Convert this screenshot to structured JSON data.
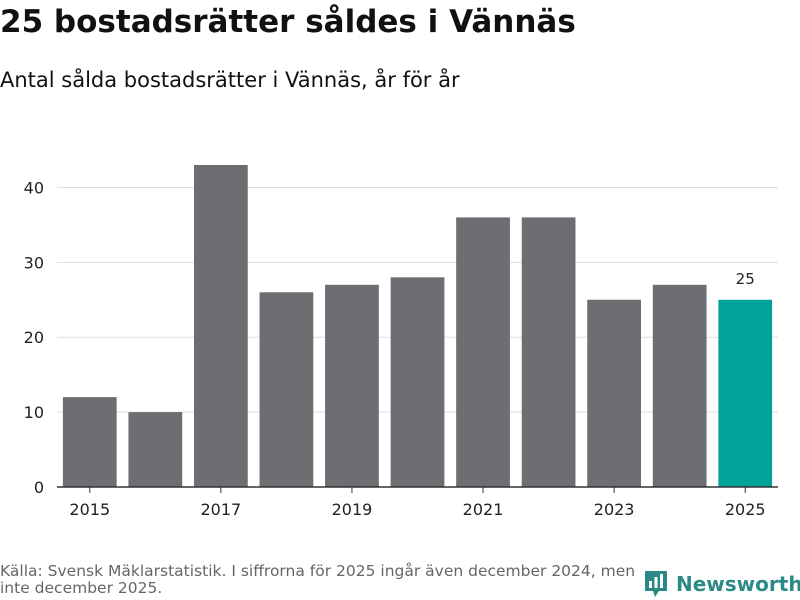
{
  "title": "25 bostadsrätter såldes i Vännäs",
  "subtitle": "Antal sålda bostadsrätter i Vännäs, år för år",
  "footer": {
    "source": "Källa: Svensk Mäklarstatistik. I siffrorna för 2025 ingår även december 2024, men inte december 2025."
  },
  "brand": {
    "name": "Newsworthy",
    "icon": "newsworthy-logo-icon"
  },
  "colors": {
    "bar": "#6e6d72",
    "highlight": "#00a29a",
    "grid": "#dddddd",
    "axis": "#333333"
  },
  "chart_data": {
    "type": "bar",
    "title": "25 bostadsrätter såldes i Vännäs",
    "subtitle": "Antal sålda bostadsrätter i Vännäs, år för år",
    "xlabel": "",
    "ylabel": "",
    "categories": [
      "2015",
      "2016",
      "2017",
      "2018",
      "2019",
      "2020",
      "2021",
      "2022",
      "2023",
      "2024",
      "2025"
    ],
    "values": [
      12,
      10,
      43,
      26,
      27,
      28,
      36,
      36,
      25,
      27,
      25
    ],
    "x_tick_labels": [
      "2015",
      "2017",
      "2019",
      "2021",
      "2023",
      "2025"
    ],
    "y_ticks": [
      0,
      10,
      20,
      30,
      40
    ],
    "ylim": [
      0,
      45
    ],
    "grid": true,
    "highlight_category": "2025",
    "annotations": [
      {
        "category": "2025",
        "label": "25"
      }
    ]
  }
}
